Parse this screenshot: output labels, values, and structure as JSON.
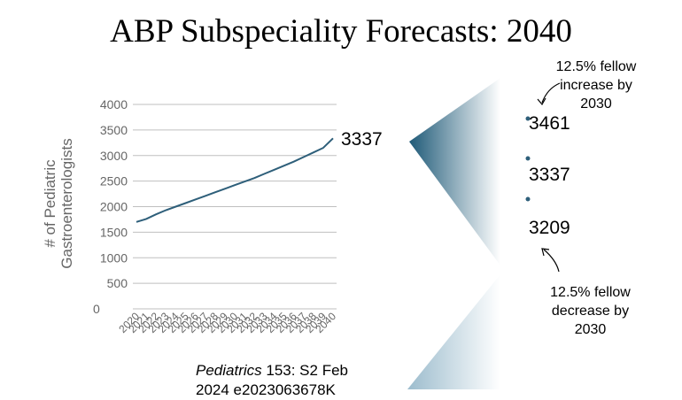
{
  "slide": {
    "title": "ABP Subspeciality Forecasts: 2040"
  },
  "chart_data": {
    "type": "line",
    "title": "",
    "xlabel": "",
    "ylabel": "# of Pediatric Gastroenterologists",
    "ylim": [
      0,
      4000
    ],
    "yticks": [
      0,
      500,
      1000,
      1500,
      2000,
      2500,
      3000,
      3500,
      4000
    ],
    "categories": [
      "2020",
      "2021",
      "2022",
      "2023",
      "2024",
      "2025",
      "2026",
      "2027",
      "2028",
      "2029",
      "2030",
      "2031",
      "2032",
      "2033",
      "2034",
      "2035",
      "2036",
      "2037",
      "2038",
      "2039",
      "2040"
    ],
    "series": [
      {
        "name": "Pediatric Gastroenterologists",
        "values": [
          1700,
          1760,
          1850,
          1930,
          2000,
          2070,
          2140,
          2210,
          2280,
          2350,
          2420,
          2490,
          2560,
          2640,
          2720,
          2800,
          2880,
          2970,
          3060,
          3150,
          3337
        ]
      }
    ],
    "end_label": "3337",
    "color": "#2e5f7a",
    "grid": true
  },
  "scenarios": {
    "high": {
      "value": "3461",
      "note_lines": [
        "12.5% fellow",
        "increase by",
        "2030"
      ]
    },
    "base": {
      "value": "3337"
    },
    "low": {
      "value": "3209",
      "note_lines": [
        "12.5% fellow",
        "decrease by",
        "2030"
      ]
    }
  },
  "citation": {
    "journal": "Pediatrics",
    "rest": " 153: S2 Feb",
    "line2": "2024 e2023063678K"
  },
  "colors": {
    "line": "#2e5f7a",
    "grid": "#bfbfbf",
    "tick_text": "#666666",
    "wedge_dark": "#1f5a78"
  }
}
